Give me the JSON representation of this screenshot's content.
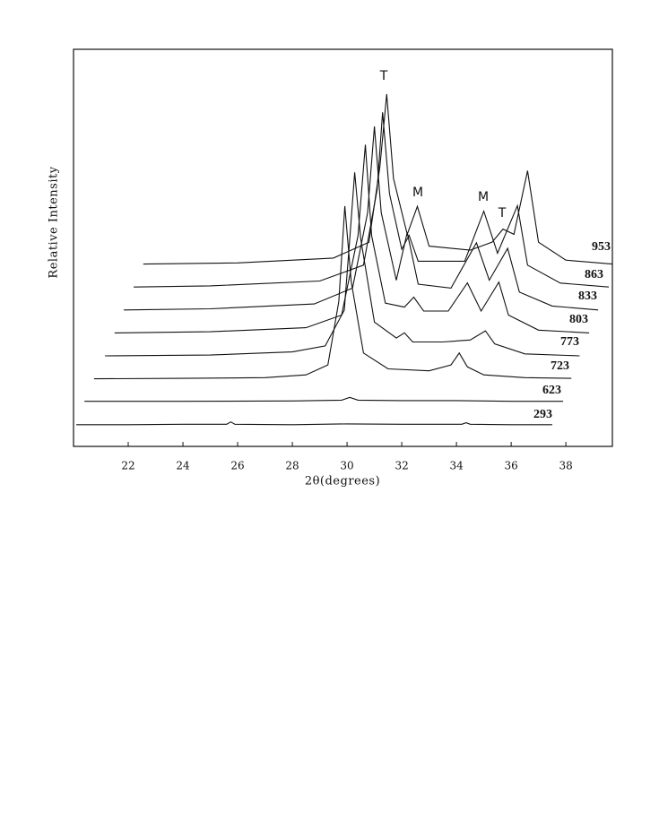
{
  "chart_data": {
    "type": "line",
    "xlabel": "2θ(degrees)",
    "ylabel": "Relative Intensity",
    "xlim": [
      20.0,
      39.7
    ],
    "xticks": [
      22,
      24,
      26,
      28,
      30,
      32,
      34,
      36,
      38
    ],
    "ylim": [
      0,
      100
    ],
    "annotations": [
      "T",
      "M",
      "M",
      "T"
    ],
    "series": [
      {
        "name": "293",
        "color": "#111111",
        "x": [
          20.1,
          22,
          24,
          25.6,
          25.75,
          25.9,
          28,
          30,
          32,
          34.2,
          34.35,
          34.5,
          36,
          37.5
        ],
        "values": [
          0.5,
          0.5,
          0.6,
          0.6,
          1.2,
          0.6,
          0.5,
          0.7,
          0.6,
          0.6,
          1,
          0.6,
          0.5,
          0.5
        ]
      },
      {
        "name": "623",
        "color": "#111111",
        "x": [
          20.4,
          24,
          28,
          29.8,
          30.1,
          30.4,
          32,
          34,
          36,
          37.9
        ],
        "values": [
          0.6,
          0.6,
          0.7,
          0.9,
          1.6,
          0.9,
          0.8,
          0.8,
          0.6,
          0.6
        ]
      },
      {
        "name": "723",
        "color": "#111111",
        "x": [
          20.75,
          24,
          27,
          28.5,
          29.3,
          29.7,
          29.92,
          30.15,
          30.6,
          31.5,
          33,
          33.8,
          34.1,
          34.4,
          35,
          36.5,
          38.2
        ],
        "values": [
          0.5,
          0.6,
          0.8,
          1.5,
          4,
          20,
          44,
          25,
          7,
          3,
          2.5,
          4,
          7,
          3.5,
          1.5,
          0.8,
          0.6
        ]
      },
      {
        "name": "773",
        "color": "#111111",
        "x": [
          21.15,
          25,
          28,
          29.2,
          29.9,
          30.1,
          30.28,
          30.5,
          31,
          31.8,
          32.1,
          32.4,
          33.5,
          34.5,
          35.06,
          35.4,
          36.5,
          38.5
        ],
        "values": [
          0.5,
          0.7,
          1.5,
          3,
          12,
          30,
          46.7,
          30,
          9,
          5,
          6.3,
          4,
          4,
          4.5,
          6.8,
          3.5,
          1,
          0.5
        ]
      },
      {
        "name": "803",
        "color": "#111111",
        "x": [
          21.5,
          25,
          28.5,
          29.8,
          30.4,
          30.67,
          30.9,
          31.4,
          32.1,
          32.44,
          32.8,
          33.7,
          34.4,
          34.9,
          35.55,
          35.9,
          37,
          38.85
        ],
        "values": [
          0.5,
          0.8,
          1.8,
          5,
          25,
          47.9,
          25,
          8,
          7,
          9.5,
          6,
          6,
          13.1,
          6,
          13.3,
          5,
          1.2,
          0.5
        ]
      },
      {
        "name": "833",
        "color": "#111111",
        "x": [
          21.84,
          25,
          28.8,
          30.2,
          30.75,
          31.0,
          31.25,
          31.8,
          32.2,
          32.6,
          33.8,
          34.73,
          35.2,
          35.87,
          36.3,
          37.5,
          39.18
        ],
        "values": [
          0.5,
          0.8,
          2,
          6,
          25,
          46.7,
          25,
          8,
          20,
          7,
          6,
          17.4,
          8,
          16,
          5,
          1.5,
          0.5
        ]
      },
      {
        "name": "863",
        "color": "#111111",
        "x": [
          22.2,
          25,
          29,
          30.6,
          31.1,
          31.3,
          31.55,
          32.0,
          32.27,
          32.6,
          34.3,
          35.0,
          35.5,
          36.23,
          36.6,
          37.8,
          39.57
        ],
        "values": [
          0.5,
          0.8,
          2,
          6,
          25,
          44.5,
          24,
          10,
          13.5,
          7,
          7,
          19.6,
          9,
          21,
          6,
          1.5,
          0.5
        ]
      },
      {
        "name": "953",
        "color": "#111111",
        "x": [
          22.55,
          26,
          29.5,
          30.8,
          31.2,
          31.45,
          31.7,
          32.2,
          32.57,
          33,
          34.5,
          35.3,
          35.7,
          36.1,
          36.6,
          37.0,
          38,
          39.7
        ],
        "values": [
          0.5,
          0.8,
          2,
          6,
          25,
          43.3,
          22,
          8,
          15,
          5,
          4,
          6,
          9.3,
          8,
          24,
          6,
          1.5,
          0.5
        ]
      }
    ]
  }
}
